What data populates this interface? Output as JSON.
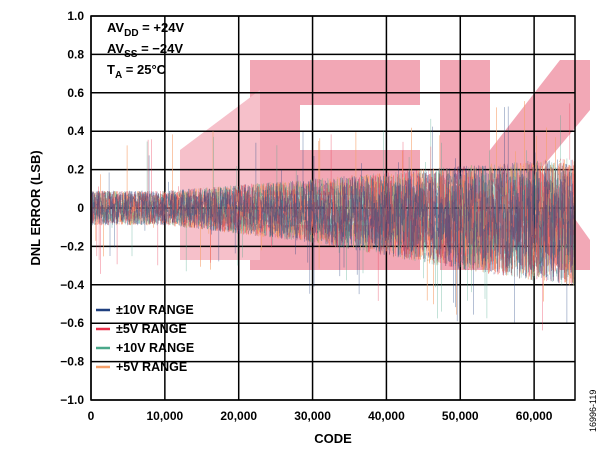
{
  "chart_data": {
    "type": "line",
    "xlabel": "CODE",
    "ylabel": "DNL ERROR (LSB)",
    "xlim": [
      0,
      65535
    ],
    "ylim": [
      -1.0,
      1.0
    ],
    "x_ticks": [
      0,
      10000,
      20000,
      30000,
      40000,
      50000,
      60000
    ],
    "x_tick_labels": [
      "0",
      "10,000",
      "20,000",
      "30,000",
      "40,000",
      "50,000",
      "60,000"
    ],
    "y_ticks": [
      1.0,
      0.8,
      0.6,
      0.4,
      0.2,
      0,
      -0.2,
      -0.4,
      -0.6,
      -0.8,
      -1.0
    ],
    "y_tick_labels": [
      "1.0",
      "0.8",
      "0.6",
      "0.4",
      "0.2",
      "0",
      "−0.2",
      "−0.4",
      "−0.6",
      "−0.8",
      "−1.0"
    ],
    "grid": true,
    "legend_position": "bottom-left",
    "conditions": {
      "avdd": {
        "main": "AV",
        "sub": "DD",
        "rest": " = +24V"
      },
      "avss": {
        "main": "AV",
        "sub": "SS",
        "rest": " = −24V"
      },
      "ta": {
        "main": "T",
        "sub": "A",
        "rest": " = 25°C"
      }
    },
    "series": [
      {
        "name": "±10V RANGE",
        "color": "#1f3f7f",
        "envelope": {
          "x": [
            0,
            10000,
            30000,
            50000,
            65535
          ],
          "upper": [
            0.1,
            0.1,
            0.17,
            0.25,
            0.3
          ],
          "lower": [
            -0.1,
            -0.1,
            -0.2,
            -0.35,
            -0.45
          ]
        }
      },
      {
        "name": "±5V RANGE",
        "color": "#e8304a",
        "envelope": {
          "x": [
            0,
            10000,
            30000,
            50000,
            65535
          ],
          "upper": [
            0.1,
            0.1,
            0.17,
            0.25,
            0.3
          ],
          "lower": [
            -0.1,
            -0.1,
            -0.2,
            -0.35,
            -0.45
          ]
        }
      },
      {
        "name": "+10V RANGE",
        "color": "#4aa88a",
        "envelope": {
          "x": [
            0,
            10000,
            30000,
            50000,
            65535
          ],
          "upper": [
            0.1,
            0.1,
            0.17,
            0.25,
            0.3
          ],
          "lower": [
            -0.1,
            -0.1,
            -0.2,
            -0.35,
            -0.45
          ]
        }
      },
      {
        "name": "+5V RANGE",
        "color": "#f5a06a",
        "envelope": {
          "x": [
            0,
            10000,
            30000,
            50000,
            65535
          ],
          "upper": [
            0.1,
            0.1,
            0.17,
            0.25,
            0.3
          ],
          "lower": [
            -0.1,
            -0.1,
            -0.2,
            -0.35,
            -0.45
          ]
        }
      }
    ],
    "figure_id": "16996-119"
  }
}
